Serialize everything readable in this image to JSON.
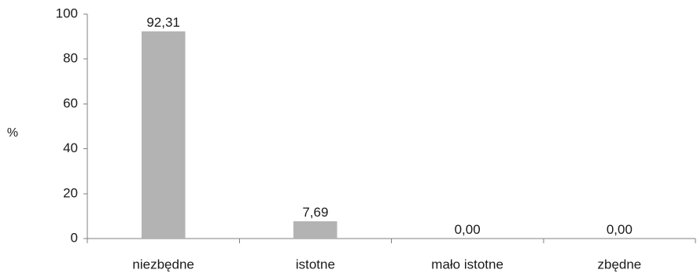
{
  "chart_data": {
    "type": "bar",
    "title": "",
    "xlabel": "",
    "ylabel": "%",
    "categories": [
      "niezbędne",
      "istotne",
      "mało istotne",
      "zbędne"
    ],
    "values": [
      92.31,
      7.69,
      0.0,
      0.0
    ],
    "data_labels": [
      "92,31",
      "7,69",
      "0,00",
      "0,00"
    ],
    "ylim": [
      0,
      100
    ],
    "yticks": [
      0,
      20,
      40,
      60,
      80,
      100
    ],
    "ytick_labels": [
      "0",
      "20",
      "40",
      "60",
      "80",
      "100"
    ],
    "grid": false,
    "legend": "none",
    "bar_color": "#b3b3b3"
  }
}
